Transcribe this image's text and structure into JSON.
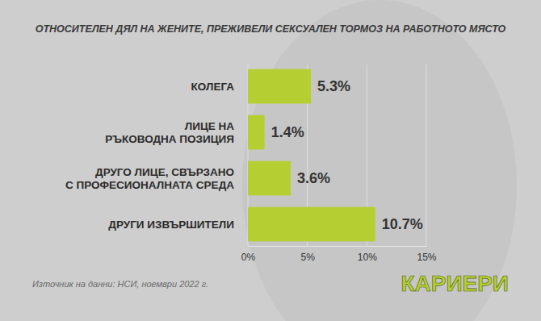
{
  "chart_data": {
    "type": "bar",
    "orientation": "horizontal",
    "title": "ОТНОСИТЕЛЕН ДЯЛ НА ЖЕНИТЕ, ПРЕЖИВЕЛИ СЕКСУАЛЕН ТОРМОЗ НА РАБОТНОТО МЯСТО",
    "categories": [
      "КОЛЕГА",
      "ЛИЦЕ НА\nРЪКОВОДНА ПОЗИЦИЯ",
      "ДРУГО ЛИЦЕ, СВЪРЗАНО\nС ПРОФЕСИОНАЛНАТА СРЕДА",
      "ДРУГИ ИЗВЪРШИТЕЛИ"
    ],
    "values": [
      5.3,
      1.4,
      3.6,
      10.7
    ],
    "value_labels": [
      "5.3%",
      "1.4%",
      "3.6%",
      "10.7%"
    ],
    "data_labels": true,
    "color": "#b5cf32",
    "xlim": [
      0,
      15
    ],
    "xticks": [
      {
        "value": 0,
        "label": "0%"
      },
      {
        "value": 5,
        "label": "5%"
      },
      {
        "value": 10,
        "label": "10%"
      },
      {
        "value": 15,
        "label": "15%"
      }
    ],
    "grid": true,
    "source": "Източник на данни: НСИ, ноември 2022 г.",
    "annotations": [
      "КАРИЕРИ"
    ]
  }
}
